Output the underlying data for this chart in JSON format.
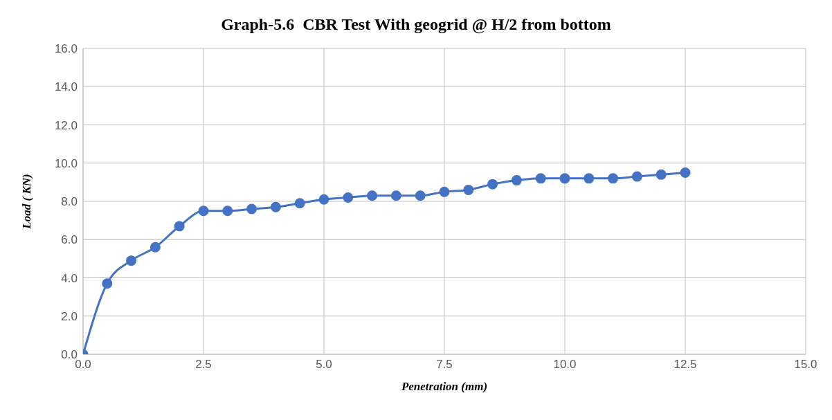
{
  "chart_data": {
    "type": "line",
    "title": "Graph-5.6  CBR Test With geogrid @ H/2 from bottom",
    "xlabel": "Penetration (mm)",
    "ylabel": "Load ( KN)",
    "x": [
      0,
      0.5,
      1,
      1.5,
      2,
      2.5,
      3,
      3.5,
      4,
      4.5,
      5,
      5.5,
      6,
      6.5,
      7,
      7.5,
      8,
      8.5,
      9,
      9.5,
      10,
      10.5,
      11,
      11.5,
      12,
      12.5
    ],
    "series": [
      {
        "color": "#4472c4",
        "values": [
          0,
          3.7,
          4.9,
          5.6,
          6.7,
          7.5,
          7.5,
          7.6,
          7.7,
          7.9,
          8.1,
          8.2,
          8.3,
          8.3,
          8.3,
          8.5,
          8.6,
          8.9,
          9.1,
          9.2,
          9.2,
          9.2,
          9.2,
          9.3,
          9.4,
          9.5
        ]
      }
    ],
    "xlim": [
      0,
      15
    ],
    "xticks": [
      {
        "value": 0,
        "label": "0.0"
      },
      {
        "value": 2.5,
        "label": "2.5"
      },
      {
        "value": 5,
        "label": "5.0"
      },
      {
        "value": 7.5,
        "label": "7.5"
      },
      {
        "value": 10,
        "label": "10.0"
      },
      {
        "value": 12.5,
        "label": "12.5"
      },
      {
        "value": 15,
        "label": "15.0"
      }
    ],
    "ylim": [
      0,
      16
    ],
    "yticks": [
      {
        "value": 0,
        "label": "0.0"
      },
      {
        "value": 2,
        "label": "2.0"
      },
      {
        "value": 4,
        "label": "4.0"
      },
      {
        "value": 6,
        "label": "6.0"
      },
      {
        "value": 8,
        "label": "8.0"
      },
      {
        "value": 10,
        "label": "10.0"
      },
      {
        "value": 12,
        "label": "12.0"
      },
      {
        "value": 14,
        "label": "14.0"
      },
      {
        "value": 16,
        "label": "16.0"
      }
    ],
    "grid": true,
    "marker": "circle",
    "line_style": "solid"
  }
}
